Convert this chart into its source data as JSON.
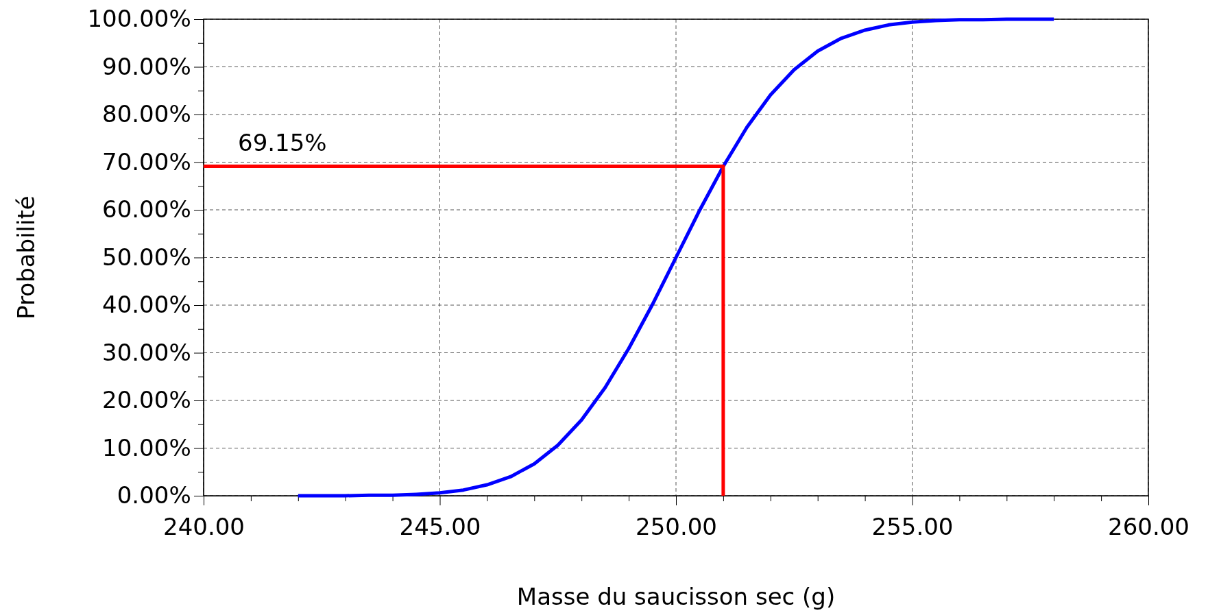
{
  "chart_data": {
    "type": "line",
    "xlabel": "Masse du saucisson sec (g)",
    "ylabel": "Probabilité",
    "xlim": [
      240,
      260
    ],
    "ylim": [
      0,
      100
    ],
    "xticks": [
      {
        "value": 240,
        "label": "240.00"
      },
      {
        "value": 241,
        "label": null
      },
      {
        "value": 242,
        "label": null
      },
      {
        "value": 243,
        "label": null
      },
      {
        "value": 244,
        "label": null
      },
      {
        "value": 245,
        "label": "245.00"
      },
      {
        "value": 246,
        "label": null
      },
      {
        "value": 247,
        "label": null
      },
      {
        "value": 248,
        "label": null
      },
      {
        "value": 249,
        "label": null
      },
      {
        "value": 250,
        "label": "250.00"
      },
      {
        "value": 251,
        "label": null
      },
      {
        "value": 252,
        "label": null
      },
      {
        "value": 253,
        "label": null
      },
      {
        "value": 254,
        "label": null
      },
      {
        "value": 255,
        "label": "255.00"
      },
      {
        "value": 256,
        "label": null
      },
      {
        "value": 257,
        "label": null
      },
      {
        "value": 258,
        "label": null
      },
      {
        "value": 259,
        "label": null
      },
      {
        "value": 260,
        "label": "260.00"
      }
    ],
    "yticks": [
      {
        "value": 0,
        "label": "0.00%"
      },
      {
        "value": 5,
        "label": null
      },
      {
        "value": 10,
        "label": "10.00%"
      },
      {
        "value": 15,
        "label": null
      },
      {
        "value": 20,
        "label": "20.00%"
      },
      {
        "value": 25,
        "label": null
      },
      {
        "value": 30,
        "label": "30.00%"
      },
      {
        "value": 35,
        "label": null
      },
      {
        "value": 40,
        "label": "40.00%"
      },
      {
        "value": 45,
        "label": null
      },
      {
        "value": 50,
        "label": "50.00%"
      },
      {
        "value": 55,
        "label": null
      },
      {
        "value": 60,
        "label": "60.00%"
      },
      {
        "value": 65,
        "label": null
      },
      {
        "value": 70,
        "label": "70.00%"
      },
      {
        "value": 75,
        "label": null
      },
      {
        "value": 80,
        "label": "80.00%"
      },
      {
        "value": 85,
        "label": null
      },
      {
        "value": 90,
        "label": "90.00%"
      },
      {
        "value": 95,
        "label": null
      },
      {
        "value": 100,
        "label": "100.00%"
      }
    ],
    "grid": true,
    "line_style": "solid",
    "marker": "none",
    "series": [
      {
        "color": "#0000ff",
        "x": [
          242,
          242.5,
          243,
          243.5,
          244,
          244.5,
          245,
          245.5,
          246,
          246.5,
          247,
          247.5,
          248,
          248.5,
          249,
          249.5,
          250,
          250.5,
          251,
          251.5,
          252,
          252.5,
          253,
          253.5,
          254,
          254.5,
          255,
          255.5,
          256,
          256.5,
          257,
          257.5,
          258
        ],
        "values": [
          0,
          0,
          0,
          0.1,
          0.1,
          0.3,
          0.6,
          1.2,
          2.3,
          4,
          6.7,
          10.6,
          15.9,
          22.7,
          30.9,
          40.1,
          50,
          59.9,
          69.1,
          77.3,
          84.1,
          89.4,
          93.3,
          96,
          97.7,
          98.8,
          99.4,
          99.7,
          99.9,
          99.9,
          100,
          100,
          100
        ]
      },
      {
        "color": "#ff0000",
        "x": [
          240,
          251,
          251
        ],
        "values": [
          69.15,
          69.15,
          0
        ]
      }
    ],
    "annotations": [
      {
        "text": "69.15%",
        "x": 240,
        "y": 69.15
      }
    ]
  }
}
